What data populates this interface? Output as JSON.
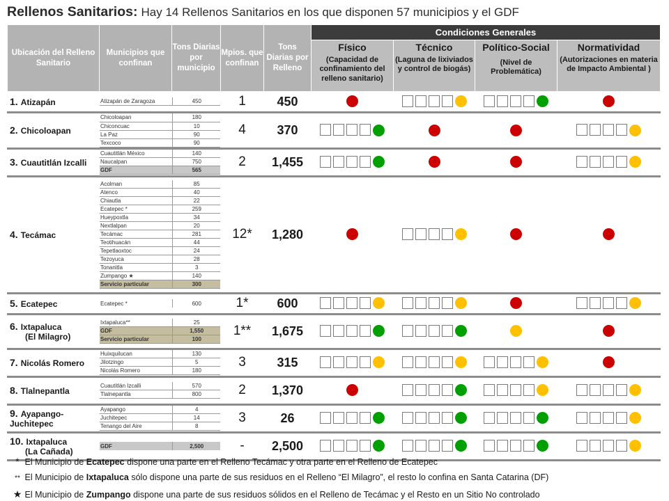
{
  "title": {
    "main": "Rellenos Sanitarios:",
    "sub": "Hay 14 Rellenos Sanitarios en los que disponen 57 municipios y el GDF"
  },
  "headers": {
    "ubicacion": "Ubicación del Relleno Sanitario",
    "municipios": "Municipios que confinan",
    "tons_muni": "Tons Diarias por municipio",
    "mpios": "Mpios. que confinan",
    "tons_relleno": "Tons Diarias por Relleno",
    "condiciones": "Condiciones Generales",
    "fisico": "Físico",
    "fisico_sub": "(Capacidad de confinamiento del relleno sanitario)",
    "tecnico": "Técnico",
    "tecnico_sub": "(Laguna de lixiviados y control de biogás)",
    "politico": "Político-Social",
    "politico_sub": "(Nivel de Problemática)",
    "normatividad": "Normatividad",
    "normatividad_sub": "(Autorizaciones en materia de Impacto Ambiental )"
  },
  "colors": {
    "red": "#cc0000",
    "green": "#00a000",
    "yellow": "#ffc000"
  },
  "rows": [
    {
      "num": "1.",
      "name": "Atizapán",
      "sub": "",
      "municipios": [
        {
          "name": "Atizapán de Zaragoza",
          "tons": "450"
        }
      ],
      "mpios": "1",
      "tons": "450",
      "conditions": [
        {
          "color": "red",
          "boxes": false
        },
        {
          "color": "yellow",
          "boxes": true
        },
        {
          "color": "green",
          "boxes": true
        },
        {
          "color": "red",
          "boxes": false
        }
      ]
    },
    {
      "num": "2.",
      "name": "Chicoloapan",
      "sub": "",
      "municipios": [
        {
          "name": "Chicoloapan",
          "tons": "180"
        },
        {
          "name": "Chiconcuac",
          "tons": "10"
        },
        {
          "name": "La Paz",
          "tons": "90"
        },
        {
          "name": "Texcoco",
          "tons": "90"
        }
      ],
      "mpios": "4",
      "tons": "370",
      "conditions": [
        {
          "color": "green",
          "boxes": true
        },
        {
          "color": "red",
          "boxes": false
        },
        {
          "color": "red",
          "boxes": false
        },
        {
          "color": "yellow",
          "boxes": true
        }
      ]
    },
    {
      "num": "3.",
      "name": "Cuautitlán Izcalli",
      "sub": "",
      "municipios": [
        {
          "name": "Cuautitlán México",
          "tons": "140"
        },
        {
          "name": "Naucalpan",
          "tons": "750"
        },
        {
          "name": "GDF",
          "tons": "565",
          "style": "gd"
        }
      ],
      "mpios": "2",
      "tons": "1,455",
      "conditions": [
        {
          "color": "green",
          "boxes": true
        },
        {
          "color": "red",
          "boxes": false
        },
        {
          "color": "red",
          "boxes": false
        },
        {
          "color": "yellow",
          "boxes": true
        }
      ]
    },
    {
      "num": "4.",
      "name": "Tecámac",
      "sub": "",
      "municipios": [
        {
          "name": "Acolman",
          "tons": "85"
        },
        {
          "name": "Atenco",
          "tons": "40"
        },
        {
          "name": "Chiautla",
          "tons": "22"
        },
        {
          "name": "Ecatepec *",
          "tons": "259"
        },
        {
          "name": "Hueypoxtla",
          "tons": "34"
        },
        {
          "name": "Nextlalpan",
          "tons": "20"
        },
        {
          "name": "Tecámac",
          "tons": "281"
        },
        {
          "name": "Teotihuacán",
          "tons": "44"
        },
        {
          "name": "Tepetlaoxtoc",
          "tons": "24"
        },
        {
          "name": "Tezoyuca",
          "tons": "28"
        },
        {
          "name": "Tonanitla",
          "tons": "3"
        },
        {
          "name": "Zumpango ★",
          "tons": "140"
        },
        {
          "name": "Servicio particular",
          "tons": "300",
          "style": "hl"
        }
      ],
      "mpios": "12*",
      "tons": "1,280",
      "conditions": [
        {
          "color": "red",
          "boxes": false
        },
        {
          "color": "yellow",
          "boxes": true
        },
        {
          "color": "red",
          "boxes": false
        },
        {
          "color": "red",
          "boxes": false
        }
      ]
    },
    {
      "num": "5.",
      "name": "Ecatepec",
      "sub": "",
      "municipios": [
        {
          "name": "Ecatepec *",
          "tons": "600"
        }
      ],
      "single": true,
      "mpios": "1*",
      "tons": "600",
      "conditions": [
        {
          "color": "yellow",
          "boxes": true
        },
        {
          "color": "yellow",
          "boxes": true
        },
        {
          "color": "red",
          "boxes": false
        },
        {
          "color": "yellow",
          "boxes": true
        }
      ]
    },
    {
      "num": "6.",
      "name": "Ixtapaluca",
      "sub": "(El Milagro)",
      "municipios": [
        {
          "name": "Ixtapaluca**",
          "tons": "25"
        },
        {
          "name": "GDF",
          "tons": "1,550",
          "style": "hl"
        },
        {
          "name": "Servicio particular",
          "tons": "100",
          "style": "hl"
        }
      ],
      "mpios": "1**",
      "tons": "1,675",
      "conditions": [
        {
          "color": "green",
          "boxes": true
        },
        {
          "color": "green",
          "boxes": true
        },
        {
          "color": "yellow",
          "boxes": false
        },
        {
          "color": "red",
          "boxes": false
        }
      ]
    },
    {
      "num": "7.",
      "name": "Nicolás Romero",
      "sub": "",
      "municipios": [
        {
          "name": "Huixquilucan",
          "tons": "130"
        },
        {
          "name": "Jilotzingo",
          "tons": "5"
        },
        {
          "name": "Nicolás Romero",
          "tons": "180"
        }
      ],
      "mpios": "3",
      "tons": "315",
      "conditions": [
        {
          "color": "yellow",
          "boxes": true
        },
        {
          "color": "yellow",
          "boxes": true
        },
        {
          "color": "yellow",
          "boxes": true
        },
        {
          "color": "red",
          "boxes": false
        }
      ]
    },
    {
      "num": "8.",
      "name": "Tlalnepantla",
      "sub": "",
      "municipios": [
        {
          "name": "Cuautitlán Izcalli",
          "tons": "570"
        },
        {
          "name": "Tlalnepantla",
          "tons": "800"
        }
      ],
      "mpios": "2",
      "tons": "1,370",
      "conditions": [
        {
          "color": "red",
          "boxes": false
        },
        {
          "color": "green",
          "boxes": true
        },
        {
          "color": "yellow",
          "boxes": true
        },
        {
          "color": "yellow",
          "boxes": true
        }
      ]
    },
    {
      "num": "9.",
      "name": "Ayapango- Juchitepec",
      "sub": "",
      "municipios": [
        {
          "name": "Ayapango",
          "tons": "4"
        },
        {
          "name": "Juchitepec",
          "tons": "14"
        },
        {
          "name": "Tenango del Aire",
          "tons": "8"
        }
      ],
      "mpios": "3",
      "tons": "26",
      "conditions": [
        {
          "color": "green",
          "boxes": true
        },
        {
          "color": "green",
          "boxes": true
        },
        {
          "color": "green",
          "boxes": true
        },
        {
          "color": "yellow",
          "boxes": true
        }
      ]
    },
    {
      "num": "10.",
      "name": "Ixtapaluca",
      "sub": "(La Cañada)",
      "municipios": [
        {
          "name": "GDF",
          "tons": "2,500",
          "style": "gd"
        }
      ],
      "single": true,
      "mpios": "-",
      "tons": "2,500",
      "conditions": [
        {
          "color": "green",
          "boxes": true
        },
        {
          "color": "green",
          "boxes": true
        },
        {
          "color": "green",
          "boxes": true
        },
        {
          "color": "yellow",
          "boxes": true
        }
      ]
    }
  ],
  "notes": [
    {
      "sym": "*",
      "pre": "El Municipio de ",
      "bold": "Ecatepec",
      "post": " dispone una parte en el Relleno Tecámac y otra parte en el Relleno de Ecatepec"
    },
    {
      "sym": "**",
      "pre": "El Municipio de ",
      "bold": "Ixtapaluca",
      "post": " sólo dispone una parte de sus residuos en el Relleno “El Milagro”, el resto lo confina en Santa Catarina (DF)"
    },
    {
      "sym": "★",
      "pre": "El Municipio de ",
      "bold": "Zumpango",
      "post": " dispone una parte de sus residuos sólidos en el Relleno de Tecámac y el Resto en un Sitio No controlado"
    }
  ]
}
